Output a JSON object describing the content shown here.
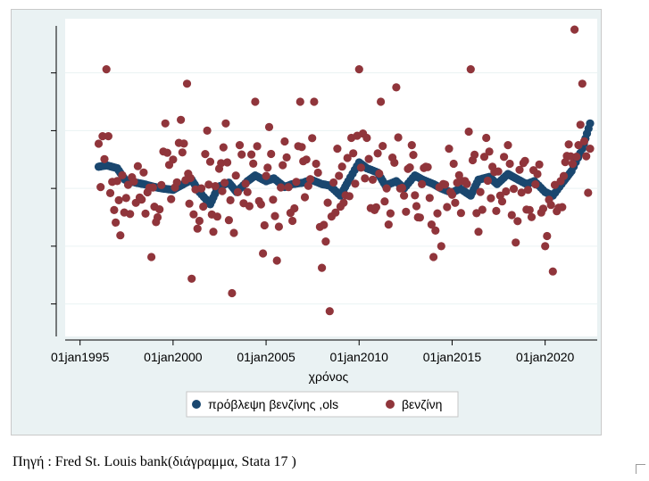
{
  "chart_data": {
    "type": "scatter",
    "xlabel": "χρόνος",
    "ylabel": "",
    "x_tick_labels": [
      "01jan1995",
      "01jan2000",
      "01jan2005",
      "01jan2010",
      "01jan2015",
      "01jan2020"
    ],
    "y_tick_labels": [],
    "y_ticks_count": 5,
    "grid": true,
    "legend_position": "bottom",
    "series": [
      {
        "name": "πρόβλεψη βενζίνης ,ols",
        "color": "#1a476f",
        "points": [
          [
            "1996-01",
            0.3
          ],
          [
            "1996-06",
            0.32
          ],
          [
            "1997-01",
            0.28
          ],
          [
            "1997-06",
            0.12
          ],
          [
            "1998-01",
            0.08
          ],
          [
            "1998-06",
            0.06
          ],
          [
            "1999-01",
            0.02
          ],
          [
            "1999-06",
            0.0
          ],
          [
            "2000-01",
            -0.02
          ],
          [
            "2000-06",
            0.04
          ],
          [
            "2001-01",
            0.12
          ],
          [
            "2001-06",
            -0.05
          ],
          [
            "2002-01",
            -0.22
          ],
          [
            "2002-06",
            0.02
          ],
          [
            "2003-01",
            0.08
          ],
          [
            "2003-06",
            -0.05
          ],
          [
            "2004-01",
            0.1
          ],
          [
            "2004-06",
            0.18
          ],
          [
            "2005-01",
            0.1
          ],
          [
            "2005-06",
            0.14
          ],
          [
            "2006-01",
            0.02
          ],
          [
            "2006-06",
            0.06
          ],
          [
            "2007-01",
            0.08
          ],
          [
            "2007-06",
            0.12
          ],
          [
            "2008-01",
            0.06
          ],
          [
            "2008-06",
            0.04
          ],
          [
            "2009-01",
            -0.1
          ],
          [
            "2009-06",
            0.1
          ],
          [
            "2010-01",
            0.36
          ],
          [
            "2010-06",
            0.28
          ],
          [
            "2011-01",
            0.22
          ],
          [
            "2011-06",
            0.04
          ],
          [
            "2012-01",
            0.1
          ],
          [
            "2012-06",
            0.0
          ],
          [
            "2013-01",
            0.18
          ],
          [
            "2013-06",
            0.12
          ],
          [
            "2014-01",
            0.06
          ],
          [
            "2014-06",
            0.0
          ],
          [
            "2015-01",
            -0.06
          ],
          [
            "2015-06",
            0.0
          ],
          [
            "2016-01",
            -0.1
          ],
          [
            "2016-06",
            0.12
          ],
          [
            "2017-01",
            0.16
          ],
          [
            "2017-06",
            0.06
          ],
          [
            "2018-01",
            0.2
          ],
          [
            "2018-06",
            0.14
          ],
          [
            "2019-01",
            0.06
          ],
          [
            "2019-06",
            0.1
          ],
          [
            "2020-01",
            -0.05
          ],
          [
            "2020-06",
            -0.1
          ],
          [
            "2021-01",
            0.1
          ],
          [
            "2021-06",
            0.24
          ],
          [
            "2022-01",
            0.55
          ],
          [
            "2022-06",
            0.9
          ]
        ]
      },
      {
        "name": "βενζίνη",
        "color": "#90353b",
        "points": [
          [
            "1996-01",
            0.62
          ],
          [
            "1996-06",
            1.65
          ],
          [
            "1996-11",
            -0.3
          ],
          [
            "1997-03",
            -0.65
          ],
          [
            "1997-08",
            0.05
          ],
          [
            "1998-01",
            -0.2
          ],
          [
            "1998-06",
            0.22
          ],
          [
            "1998-11",
            -0.95
          ],
          [
            "1999-03",
            -0.4
          ],
          [
            "1999-08",
            0.9
          ],
          [
            "2000-01",
            0.4
          ],
          [
            "2000-06",
            0.95
          ],
          [
            "2000-10",
            1.45
          ],
          [
            "2001-01",
            -1.25
          ],
          [
            "2001-06",
            -0.45
          ],
          [
            "2001-11",
            0.8
          ],
          [
            "2002-03",
            -0.6
          ],
          [
            "2002-08",
            0.35
          ],
          [
            "2002-11",
            0.9
          ],
          [
            "2003-03",
            -1.45
          ],
          [
            "2003-08",
            0.6
          ],
          [
            "2004-01",
            -0.05
          ],
          [
            "2004-06",
            1.2
          ],
          [
            "2004-11",
            -0.9
          ],
          [
            "2005-03",
            0.85
          ],
          [
            "2005-08",
            -1.0
          ],
          [
            "2006-01",
            0.65
          ],
          [
            "2006-06",
            -0.45
          ],
          [
            "2006-11",
            1.2
          ],
          [
            "2007-03",
            0.4
          ],
          [
            "2007-08",
            1.2
          ],
          [
            "2008-01",
            -1.1
          ],
          [
            "2008-06",
            -1.7
          ],
          [
            "2008-11",
            0.55
          ],
          [
            "2009-03",
            -0.2
          ],
          [
            "2009-08",
            0.7
          ],
          [
            "2010-01",
            1.65
          ],
          [
            "2010-06",
            0.7
          ],
          [
            "2010-11",
            -0.3
          ],
          [
            "2011-03",
            1.2
          ],
          [
            "2011-08",
            -0.5
          ],
          [
            "2012-01",
            1.4
          ],
          [
            "2012-06",
            -0.1
          ],
          [
            "2012-11",
            0.6
          ],
          [
            "2013-03",
            -0.4
          ],
          [
            "2013-08",
            0.3
          ],
          [
            "2014-01",
            -0.95
          ],
          [
            "2014-06",
            -0.8
          ],
          [
            "2014-11",
            0.55
          ],
          [
            "2015-03",
            -0.2
          ],
          [
            "2015-08",
            0.1
          ],
          [
            "2016-01",
            1.65
          ],
          [
            "2016-06",
            -0.6
          ],
          [
            "2016-11",
            0.7
          ],
          [
            "2017-03",
            0.3
          ],
          [
            "2017-08",
            -0.1
          ],
          [
            "2018-01",
            0.6
          ],
          [
            "2018-06",
            -0.75
          ],
          [
            "2018-11",
            0.35
          ],
          [
            "2019-03",
            -0.3
          ],
          [
            "2019-08",
            0.2
          ],
          [
            "2020-01",
            -0.8
          ],
          [
            "2020-06",
            -1.15
          ],
          [
            "2020-11",
            0.1
          ],
          [
            "2021-03",
            0.45
          ],
          [
            "2021-08",
            2.2
          ],
          [
            "2022-01",
            1.45
          ],
          [
            "2022-06",
            0.55
          ]
        ]
      }
    ]
  },
  "source_text": "Πηγή : Fred  St. Louis bank(διάγραμμα, Stata 17 )"
}
